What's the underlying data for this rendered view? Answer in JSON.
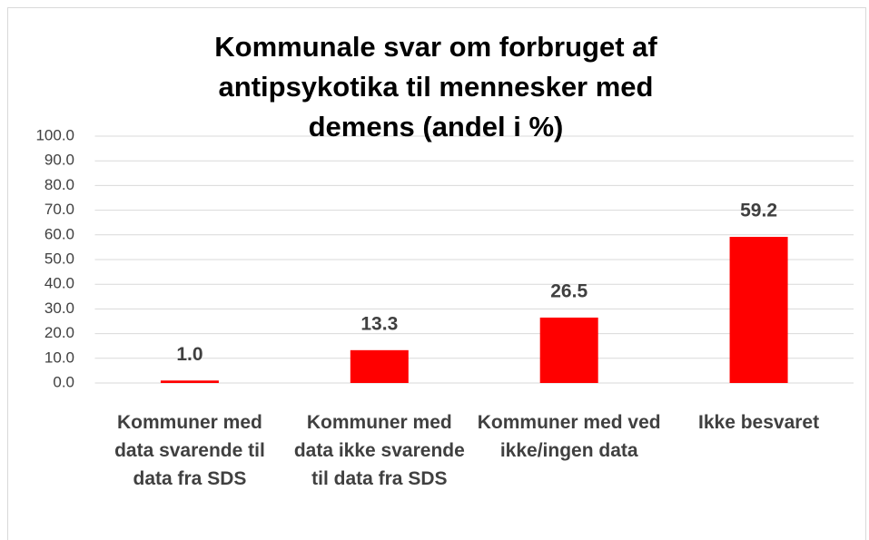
{
  "chart_data": {
    "type": "bar",
    "title": "Kommunale svar om forbruget af antipsykotika til mennesker med demens (andel i %)",
    "categories": [
      "Kommuner med data svarende til data fra SDS",
      "Kommuner med data ikke svarende til data fra SDS",
      "Kommuner med ved ikke/ingen data",
      "Ikke besvaret"
    ],
    "values": [
      1.0,
      13.3,
      26.5,
      59.2
    ],
    "value_labels": [
      "1.0",
      "13.3",
      "26.5",
      "59.2"
    ],
    "color": "#ff0000",
    "ylim": [
      0,
      100
    ],
    "yticks": [
      {
        "value": 0,
        "label": "0.0"
      },
      {
        "value": 10,
        "label": "10.0"
      },
      {
        "value": 20,
        "label": "20.0"
      },
      {
        "value": 30,
        "label": "30.0"
      },
      {
        "value": 40,
        "label": "40.0"
      },
      {
        "value": 50,
        "label": "50.0"
      },
      {
        "value": 60,
        "label": "60.0"
      },
      {
        "value": 70,
        "label": "70.0"
      },
      {
        "value": 80,
        "label": "80.0"
      },
      {
        "value": 90,
        "label": "90.0"
      },
      {
        "value": 100,
        "label": "100.0"
      }
    ],
    "grid": true
  }
}
